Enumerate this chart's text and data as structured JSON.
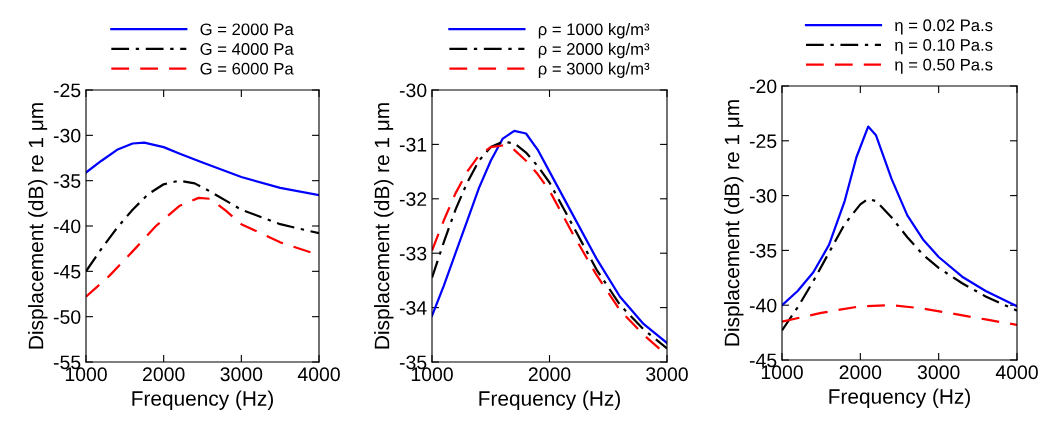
{
  "chart_data": [
    {
      "type": "line",
      "xlabel": "Frequency (Hz)",
      "ylabel": "Displacement (dB) re 1 μm",
      "xlim": [
        1000,
        4000
      ],
      "xticks": [
        1000,
        2000,
        3000,
        4000
      ],
      "ylim": [
        -55,
        -25
      ],
      "yticks": [
        -55,
        -50,
        -45,
        -40,
        -35,
        -30,
        -25
      ],
      "grid": false,
      "legend": "top",
      "series": [
        {
          "name": "G = 2000 Pa",
          "color": "#0000ff",
          "line_style": "solid",
          "x": [
            1000,
            1200,
            1400,
            1600,
            1750,
            2000,
            2200,
            2500,
            3000,
            3500,
            4000
          ],
          "values": [
            -34.1,
            -32.8,
            -31.6,
            -30.9,
            -30.8,
            -31.3,
            -32,
            -33,
            -34.6,
            -35.8,
            -36.6
          ]
        },
        {
          "name": "G = 4000 Pa",
          "color": "#000000",
          "line_style": "dashdot",
          "x": [
            1000,
            1200,
            1400,
            1600,
            1800,
            2000,
            2200,
            2400,
            2600,
            3000,
            3500,
            4000
          ],
          "values": [
            -45,
            -42.5,
            -40.2,
            -38.2,
            -36.5,
            -35.4,
            -35,
            -35.3,
            -36.2,
            -38.2,
            -39.8,
            -40.8
          ]
        },
        {
          "name": "G = 6000 Pa",
          "color": "#ff0000",
          "line_style": "dashed",
          "x": [
            1000,
            1300,
            1600,
            1900,
            2200,
            2450,
            2600,
            2800,
            3000,
            3500,
            4000
          ],
          "values": [
            -47.8,
            -45.5,
            -42.8,
            -40,
            -37.8,
            -36.9,
            -37,
            -38.3,
            -39.8,
            -41.8,
            -43.2
          ]
        }
      ]
    },
    {
      "type": "line",
      "xlabel": "Frequency (Hz)",
      "ylabel": "Displacement (dB) re 1 μm",
      "xlim": [
        1000,
        3000
      ],
      "xticks": [
        1000,
        2000,
        3000
      ],
      "ylim": [
        -35,
        -30
      ],
      "yticks": [
        -35,
        -34,
        -33,
        -32,
        -31,
        -30
      ],
      "grid": false,
      "legend": "top",
      "series": [
        {
          "name": "ρ = 1000 kg/m³",
          "color": "#0000ff",
          "line_style": "solid",
          "x": [
            1000,
            1100,
            1200,
            1300,
            1400,
            1500,
            1600,
            1700,
            1800,
            1900,
            2000,
            2200,
            2400,
            2600,
            2800,
            3000
          ],
          "values": [
            -34.15,
            -33.6,
            -33,
            -32.4,
            -31.8,
            -31.3,
            -30.9,
            -30.75,
            -30.8,
            -31.1,
            -31.5,
            -32.3,
            -33.1,
            -33.8,
            -34.3,
            -34.65
          ]
        },
        {
          "name": "ρ = 2000 kg/m³",
          "color": "#000000",
          "line_style": "dashdot",
          "x": [
            1000,
            1100,
            1200,
            1300,
            1400,
            1500,
            1600,
            1700,
            1800,
            1900,
            2000,
            2200,
            2400,
            2600,
            2800,
            3000
          ],
          "values": [
            -33.45,
            -32.8,
            -32.2,
            -31.7,
            -31.3,
            -31.05,
            -30.95,
            -30.98,
            -31.15,
            -31.4,
            -31.7,
            -32.5,
            -33.3,
            -33.95,
            -34.4,
            -34.75
          ]
        },
        {
          "name": "ρ = 3000 kg/m³",
          "color": "#ff0000",
          "line_style": "dashed",
          "x": [
            1000,
            1100,
            1200,
            1300,
            1400,
            1500,
            1600,
            1700,
            1800,
            1900,
            2000,
            2200,
            2400,
            2600,
            2800,
            2960
          ],
          "values": [
            -32.95,
            -32.4,
            -31.9,
            -31.5,
            -31.2,
            -31.05,
            -31.02,
            -31.1,
            -31.3,
            -31.55,
            -31.85,
            -32.65,
            -33.4,
            -34.05,
            -34.5,
            -34.8
          ]
        }
      ]
    },
    {
      "type": "line",
      "xlabel": "Frequency (Hz)",
      "ylabel": "Displacement (dB) re 1 μm",
      "xlim": [
        1000,
        4000
      ],
      "xticks": [
        1000,
        2000,
        3000,
        4000
      ],
      "ylim": [
        -45,
        -20
      ],
      "yticks": [
        -45,
        -40,
        -35,
        -30,
        -25,
        -20
      ],
      "grid": false,
      "legend": "top",
      "series": [
        {
          "name": "η = 0.02 Pa.s",
          "color": "#0000ff",
          "line_style": "solid",
          "x": [
            1000,
            1200,
            1400,
            1600,
            1800,
            1950,
            2100,
            2200,
            2400,
            2600,
            2800,
            3000,
            3300,
            3600,
            4000
          ],
          "values": [
            -40,
            -38.7,
            -37,
            -34.5,
            -30.5,
            -26.5,
            -23.7,
            -24.5,
            -28.5,
            -31.8,
            -34,
            -35.6,
            -37.4,
            -38.7,
            -40.1
          ]
        },
        {
          "name": "η = 0.10 Pa.s",
          "color": "#000000",
          "line_style": "dashdot",
          "x": [
            1000,
            1200,
            1400,
            1600,
            1800,
            2000,
            2100,
            2200,
            2400,
            2600,
            2800,
            3000,
            3300,
            3600,
            4000
          ],
          "values": [
            -42.3,
            -40.2,
            -37.8,
            -35.2,
            -32.6,
            -30.8,
            -30.3,
            -30.5,
            -32,
            -33.8,
            -35.4,
            -36.6,
            -38,
            -39.2,
            -40.5
          ]
        },
        {
          "name": "η = 0.50 Pa.s",
          "color": "#ff0000",
          "line_style": "dashed",
          "x": [
            1000,
            1500,
            2000,
            2400,
            2800,
            3200,
            3600,
            4000
          ],
          "values": [
            -41.5,
            -40.7,
            -40.1,
            -40,
            -40.3,
            -40.8,
            -41.3,
            -41.8
          ]
        }
      ]
    }
  ]
}
